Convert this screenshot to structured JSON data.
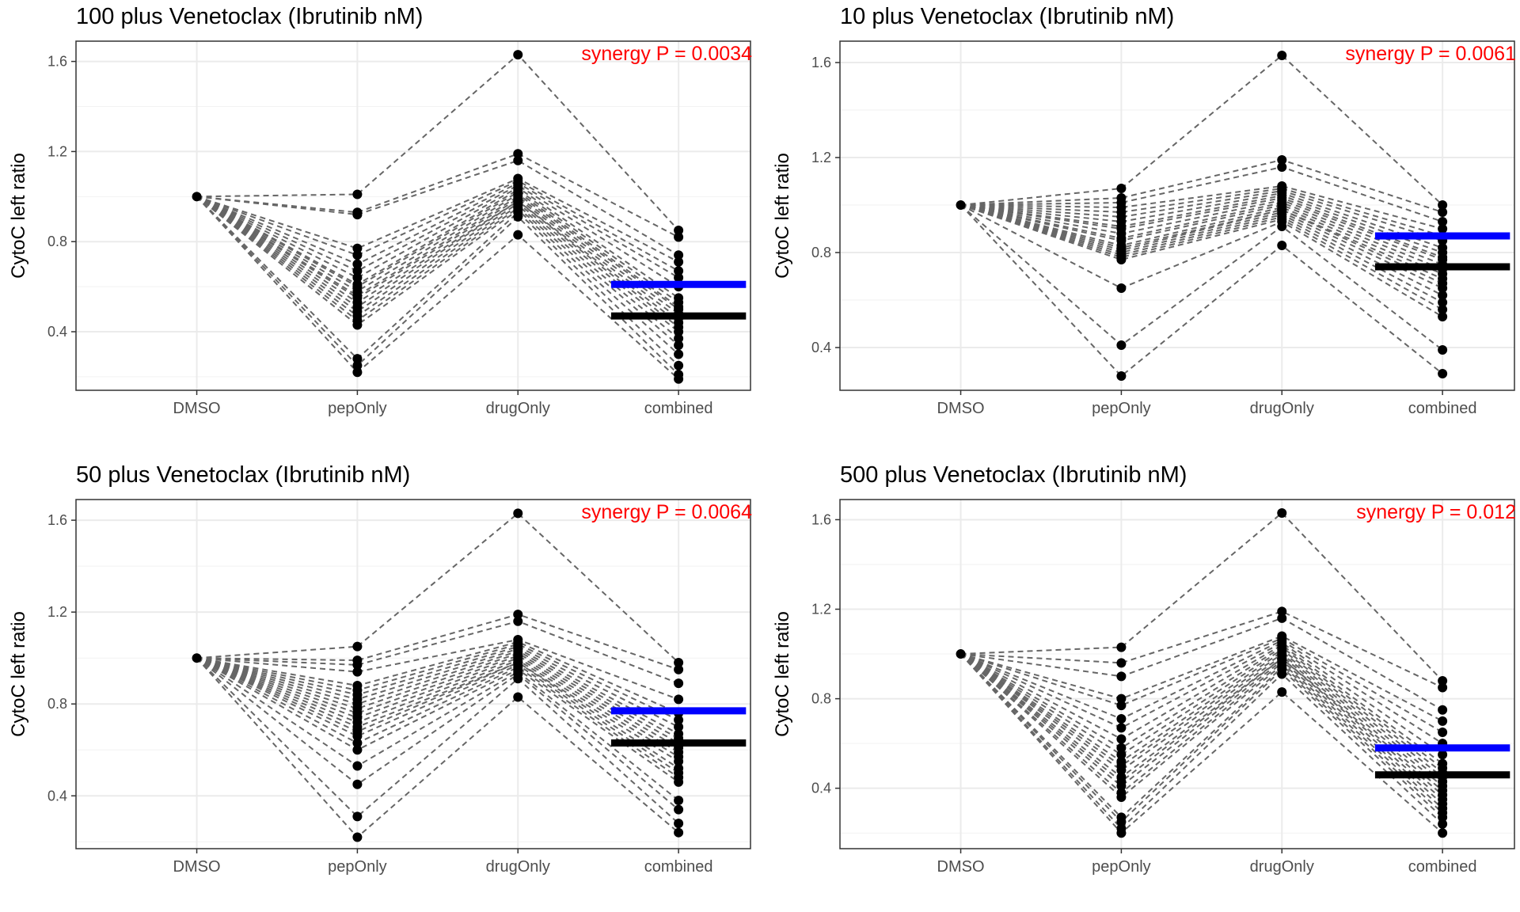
{
  "chart_data": [
    {
      "type": "scatter",
      "title": "100 plus Venetoclax (Ibrutinib nM)",
      "ylabel": "CytoC left ratio",
      "xlabel": "",
      "annotation": "synergy P = 0.0034",
      "categories": [
        "DMSO",
        "pepOnly",
        "drugOnly",
        "combined"
      ],
      "ylim": [
        0.14,
        1.69
      ],
      "yticks": [
        "0.4",
        "0.8",
        "1.2",
        "1.6"
      ],
      "colors": {
        "expected_line": "#0000ff",
        "observed_line": "#000000",
        "annotation": "#ff0000",
        "connector": "#666666"
      },
      "expected_level": 0.61,
      "observed_level": 0.47,
      "series": [
        {
          "name": "pepOnly",
          "values": [
            1.01,
            0.93,
            0.92,
            0.77,
            0.74,
            0.7,
            0.67,
            0.64,
            0.61,
            0.6,
            0.58,
            0.56,
            0.55,
            0.53,
            0.51,
            0.49,
            0.47,
            0.45,
            0.43,
            0.28,
            0.25,
            0.22
          ]
        },
        {
          "name": "drugOnly",
          "values": [
            1.63,
            1.19,
            1.16,
            1.08,
            1.07,
            1.06,
            1.05,
            1.04,
            1.03,
            1.02,
            1.01,
            1.0,
            0.99,
            0.98,
            0.98,
            0.97,
            0.96,
            0.95,
            0.94,
            0.93,
            0.91,
            0.83
          ]
        },
        {
          "name": "combined",
          "values": [
            0.85,
            0.82,
            0.74,
            0.71,
            0.67,
            0.64,
            0.6,
            0.55,
            0.53,
            0.51,
            0.5,
            0.48,
            0.46,
            0.44,
            0.42,
            0.4,
            0.37,
            0.34,
            0.3,
            0.25,
            0.21,
            0.19
          ]
        }
      ]
    },
    {
      "type": "scatter",
      "title": "10 plus Venetoclax (Ibrutinib nM)",
      "ylabel": "CytoC left ratio",
      "xlabel": "",
      "annotation": "synergy P = 0.0061",
      "categories": [
        "DMSO",
        "pepOnly",
        "drugOnly",
        "combined"
      ],
      "ylim": [
        0.22,
        1.69
      ],
      "yticks": [
        "0.4",
        "0.8",
        "1.2",
        "1.6"
      ],
      "colors": {
        "expected_line": "#0000ff",
        "observed_line": "#000000",
        "annotation": "#ff0000",
        "connector": "#666666"
      },
      "expected_level": 0.87,
      "observed_level": 0.74,
      "series": [
        {
          "name": "pepOnly",
          "values": [
            1.07,
            1.03,
            1.01,
            0.99,
            0.97,
            0.95,
            0.93,
            0.91,
            0.9,
            0.88,
            0.86,
            0.85,
            0.83,
            0.82,
            0.81,
            0.8,
            0.79,
            0.78,
            0.77,
            0.65,
            0.41,
            0.28
          ]
        },
        {
          "name": "drugOnly",
          "values": [
            1.63,
            1.19,
            1.16,
            1.08,
            1.07,
            1.06,
            1.05,
            1.04,
            1.03,
            1.02,
            1.01,
            1.0,
            0.99,
            0.98,
            0.98,
            0.97,
            0.96,
            0.95,
            0.94,
            0.93,
            0.91,
            0.83
          ]
        },
        {
          "name": "combined",
          "values": [
            1.0,
            0.97,
            0.93,
            0.9,
            0.87,
            0.85,
            0.82,
            0.8,
            0.78,
            0.77,
            0.75,
            0.73,
            0.71,
            0.69,
            0.67,
            0.65,
            0.62,
            0.59,
            0.56,
            0.53,
            0.39,
            0.29
          ]
        }
      ]
    },
    {
      "type": "scatter",
      "title": "50 plus Venetoclax (Ibrutinib nM)",
      "ylabel": "CytoC left ratio",
      "xlabel": "",
      "annotation": "synergy P = 0.0064",
      "categories": [
        "DMSO",
        "pepOnly",
        "drugOnly",
        "combined"
      ],
      "ylim": [
        0.17,
        1.69
      ],
      "yticks": [
        "0.4",
        "0.8",
        "1.2",
        "1.6"
      ],
      "colors": {
        "expected_line": "#0000ff",
        "observed_line": "#000000",
        "annotation": "#ff0000",
        "connector": "#666666"
      },
      "expected_level": 0.77,
      "observed_level": 0.63,
      "series": [
        {
          "name": "pepOnly",
          "values": [
            1.05,
            0.99,
            0.97,
            0.94,
            0.88,
            0.86,
            0.84,
            0.82,
            0.8,
            0.78,
            0.76,
            0.74,
            0.72,
            0.7,
            0.68,
            0.66,
            0.63,
            0.6,
            0.53,
            0.45,
            0.31,
            0.22
          ]
        },
        {
          "name": "drugOnly",
          "values": [
            1.63,
            1.19,
            1.16,
            1.08,
            1.07,
            1.06,
            1.05,
            1.04,
            1.03,
            1.02,
            1.01,
            1.0,
            0.99,
            0.98,
            0.98,
            0.97,
            0.96,
            0.95,
            0.94,
            0.93,
            0.91,
            0.83
          ]
        },
        {
          "name": "combined",
          "values": [
            0.98,
            0.95,
            0.89,
            0.82,
            0.76,
            0.73,
            0.7,
            0.67,
            0.65,
            0.63,
            0.61,
            0.59,
            0.57,
            0.55,
            0.52,
            0.5,
            0.48,
            0.46,
            0.38,
            0.34,
            0.28,
            0.24
          ]
        }
      ]
    },
    {
      "type": "scatter",
      "title": "500 plus Venetoclax (Ibrutinib nM)",
      "ylabel": "CytoC left ratio",
      "xlabel": "",
      "annotation": "synergy P = 0.012",
      "categories": [
        "DMSO",
        "pepOnly",
        "drugOnly",
        "combined"
      ],
      "ylim": [
        0.13,
        1.69
      ],
      "yticks": [
        "0.4",
        "0.8",
        "1.2",
        "1.6"
      ],
      "colors": {
        "expected_line": "#0000ff",
        "observed_line": "#000000",
        "annotation": "#ff0000",
        "connector": "#666666"
      },
      "expected_level": 0.58,
      "observed_level": 0.46,
      "series": [
        {
          "name": "pepOnly",
          "values": [
            1.03,
            0.96,
            0.9,
            0.8,
            0.77,
            0.71,
            0.67,
            0.62,
            0.58,
            0.55,
            0.52,
            0.5,
            0.48,
            0.45,
            0.43,
            0.41,
            0.38,
            0.36,
            0.27,
            0.25,
            0.22,
            0.2
          ]
        },
        {
          "name": "drugOnly",
          "values": [
            1.63,
            1.19,
            1.16,
            1.08,
            1.07,
            1.06,
            1.05,
            1.04,
            1.03,
            1.02,
            1.01,
            1.0,
            0.99,
            0.98,
            0.98,
            0.97,
            0.96,
            0.95,
            0.94,
            0.93,
            0.91,
            0.83
          ]
        },
        {
          "name": "combined",
          "values": [
            0.88,
            0.85,
            0.75,
            0.7,
            0.65,
            0.6,
            0.55,
            0.51,
            0.49,
            0.47,
            0.45,
            0.43,
            0.41,
            0.39,
            0.37,
            0.35,
            0.33,
            0.31,
            0.29,
            0.27,
            0.24,
            0.2
          ]
        }
      ]
    }
  ]
}
